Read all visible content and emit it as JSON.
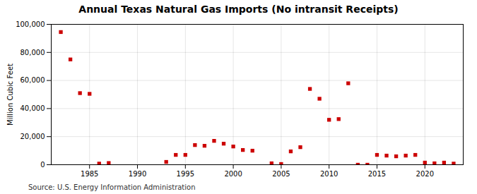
{
  "chart_data": {
    "type": "scatter",
    "title": "Annual Texas Natural Gas Imports (No intransit Receipts)",
    "ylabel": "Million Cubic Feet",
    "annotation": "Source: U.S. Energy Information Administration",
    "x": [
      1982,
      1983,
      1984,
      1985,
      1986,
      1987,
      1993,
      1994,
      1995,
      1996,
      1997,
      1998,
      1999,
      2000,
      2001,
      2002,
      2004,
      2005,
      2006,
      2007,
      2008,
      2009,
      2010,
      2011,
      2012,
      2013,
      2014,
      2015,
      2016,
      2017,
      2018,
      2019,
      2020,
      2021,
      2022,
      2023
    ],
    "values": [
      94500,
      75000,
      51000,
      50500,
      800,
      1200,
      2000,
      7000,
      7000,
      14000,
      13500,
      17000,
      15000,
      13000,
      10500,
      10000,
      1000,
      500,
      9500,
      12500,
      54000,
      47000,
      32000,
      32500,
      58000,
      0,
      0,
      7000,
      6500,
      6000,
      6500,
      7000,
      1500,
      1000,
      1500,
      800
    ],
    "color": "#cc0000",
    "marker": "square",
    "xlim": [
      1981,
      2024
    ],
    "xticks": [
      1985,
      1990,
      1995,
      2000,
      2005,
      2010,
      2015,
      2020
    ],
    "ylim": [
      0,
      100000
    ],
    "yticks": [
      0,
      {
        "value": 20000,
        "label": "20,000"
      },
      {
        "value": 40000,
        "label": "40,000"
      },
      {
        "value": 60000,
        "label": "60,000"
      },
      {
        "value": 80000,
        "label": "80,000"
      },
      {
        "value": 100000,
        "label": "100,000"
      }
    ],
    "grid": true
  }
}
